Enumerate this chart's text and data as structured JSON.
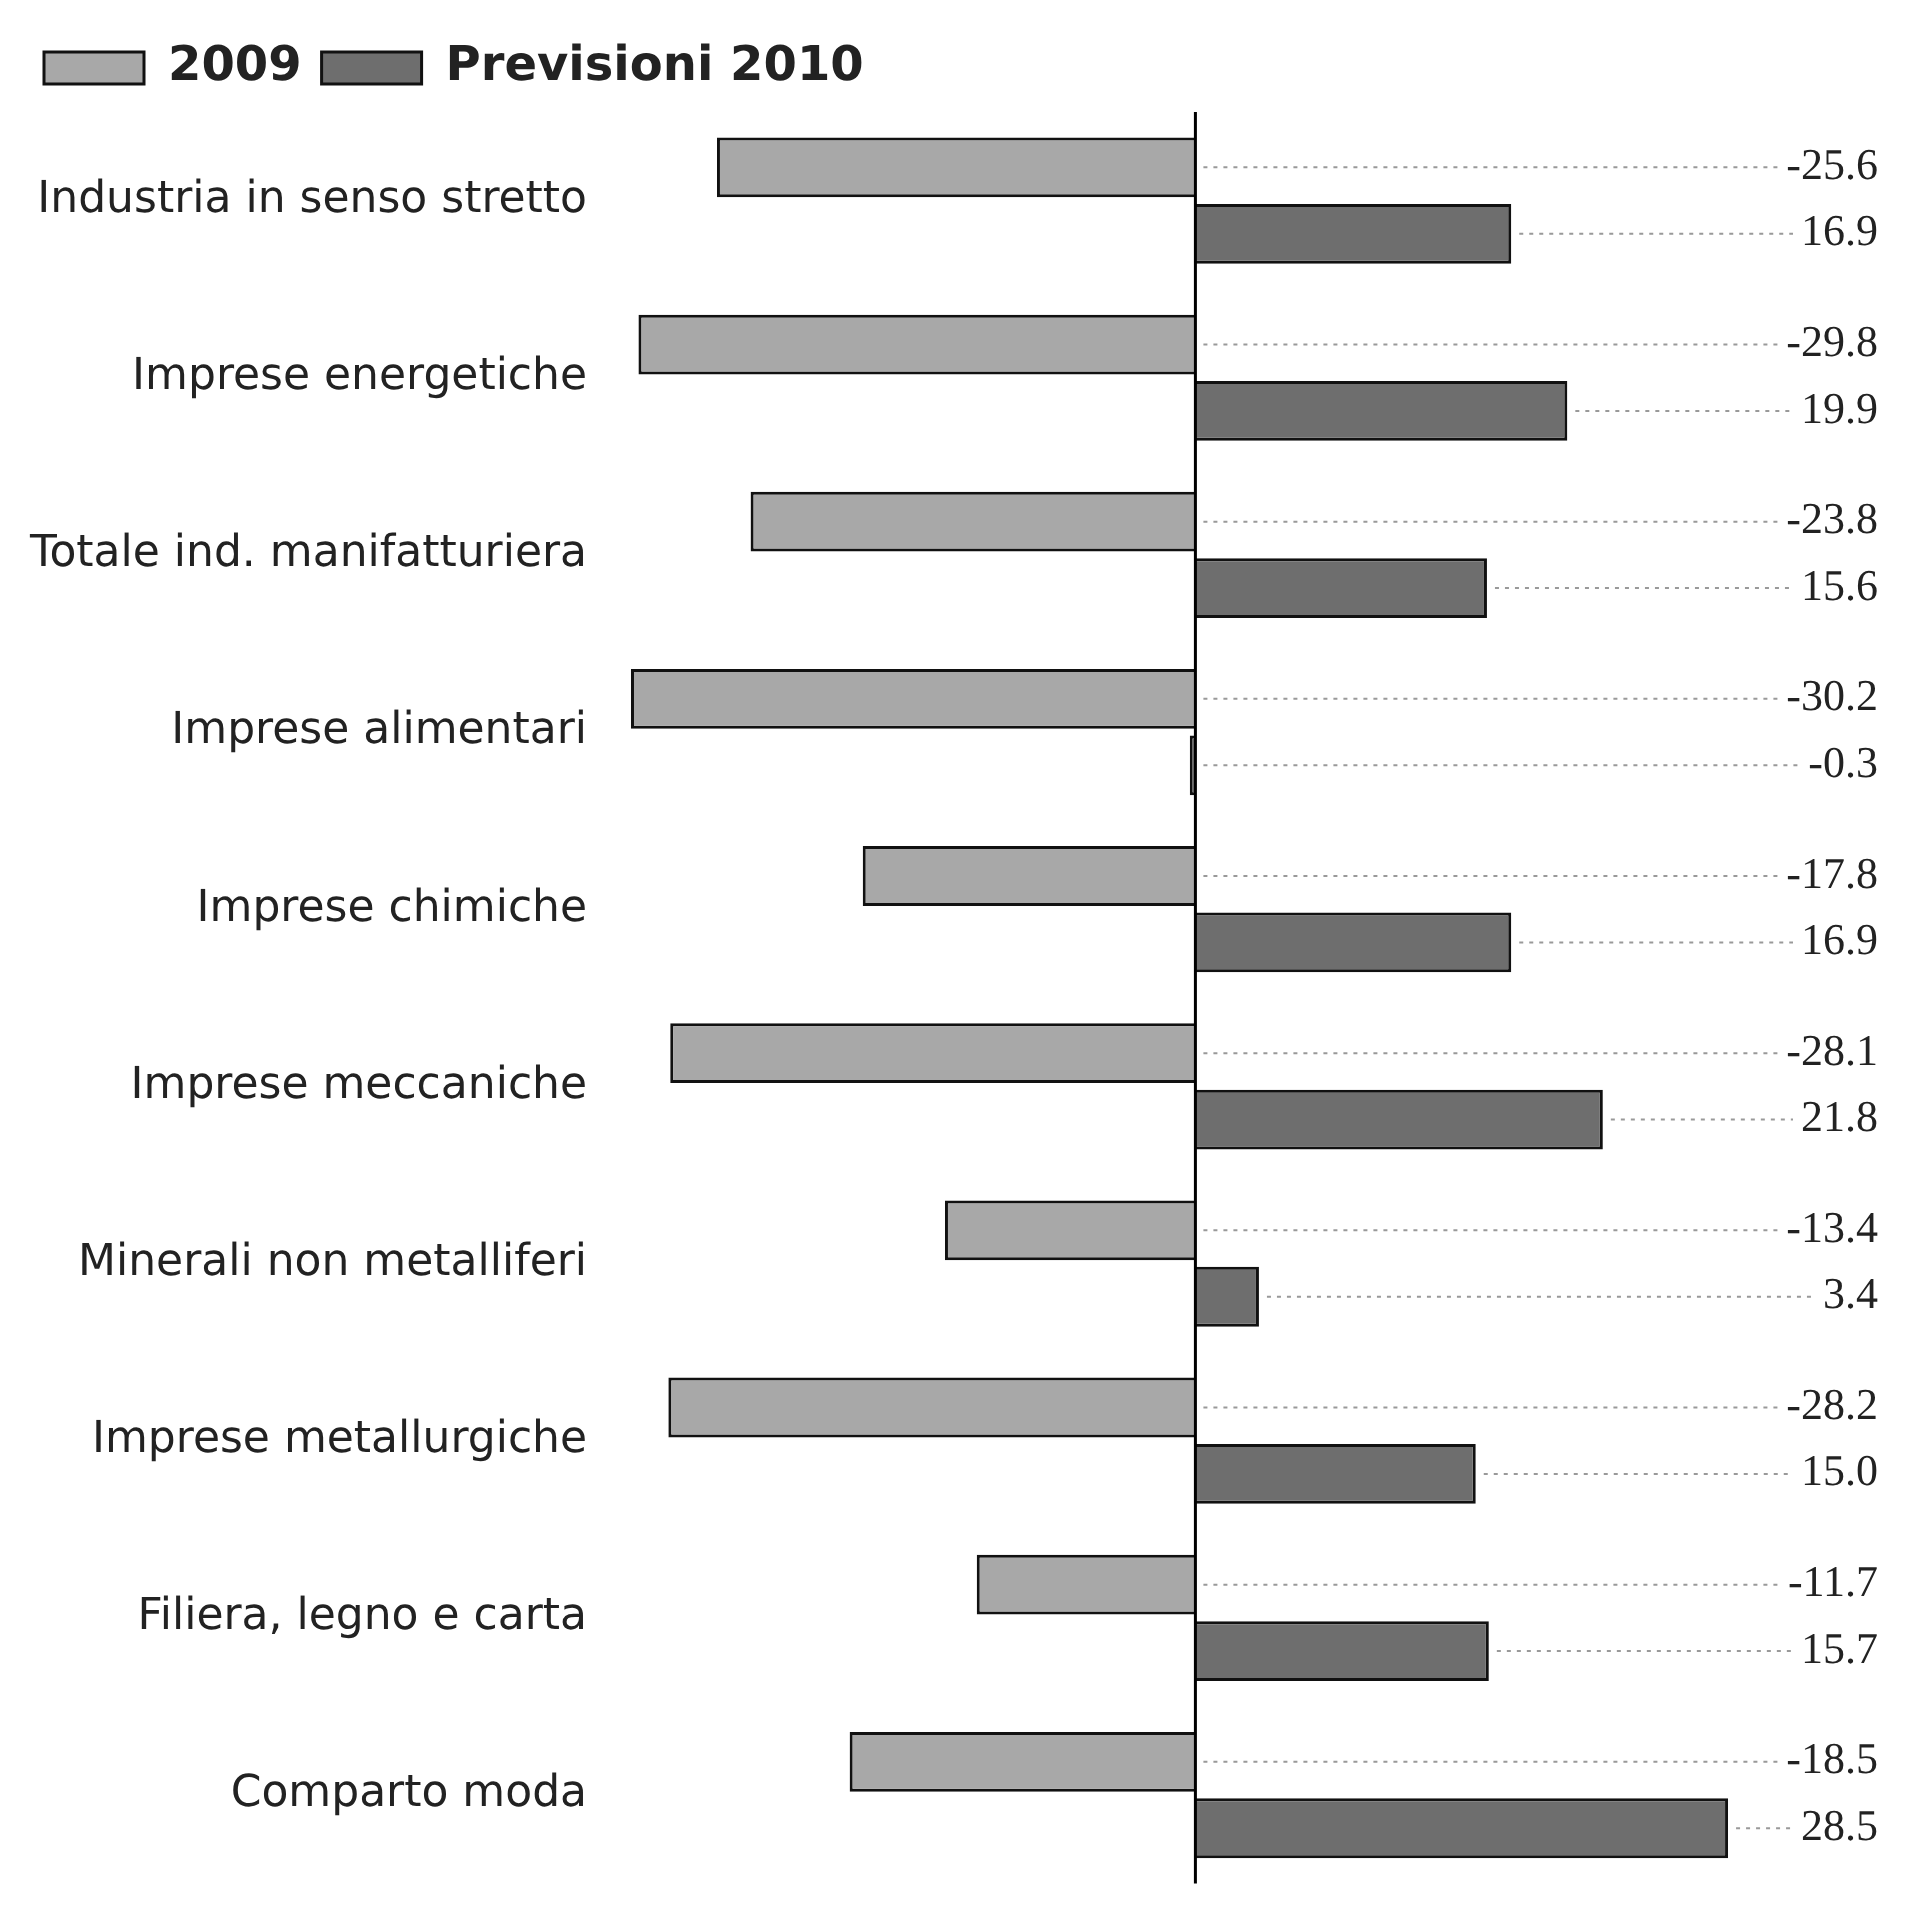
{
  "chart_data": {
    "type": "bar",
    "orientation": "horizontal",
    "categories": [
      "Industria in senso stretto",
      "Imprese energetiche",
      "Totale ind. manifatturiera",
      "Imprese alimentari",
      "Imprese chimiche",
      "Imprese meccaniche",
      "Minerali non metalliferi",
      "Imprese metallurgiche",
      "Filiera, legno e carta",
      "Comparto moda"
    ],
    "series": [
      {
        "name": "2009",
        "color": "#a8a8a8",
        "values": [
          -25.6,
          -29.8,
          -23.8,
          -30.2,
          -17.8,
          -28.1,
          -13.4,
          -28.2,
          -11.7,
          -18.5
        ],
        "value_labels": [
          "-25.6",
          "-29.8",
          "-23.8",
          "-30.2",
          "-17.8",
          "-28.1",
          "-13.4",
          "-28.2",
          "-11.7",
          "-18.5"
        ]
      },
      {
        "name": "Previsioni 2010",
        "color": "#6e6e6e",
        "values": [
          16.9,
          19.9,
          15.6,
          -0.3,
          16.9,
          21.8,
          3.4,
          15.0,
          15.7,
          28.5
        ],
        "value_labels": [
          "16.9",
          "19.9",
          "15.6",
          "-0.3",
          "16.9",
          "21.8",
          "3.4",
          "15.0",
          "15.7",
          "28.5"
        ]
      }
    ],
    "legend": "top left",
    "tick_labels": "y",
    "grid": false
  }
}
